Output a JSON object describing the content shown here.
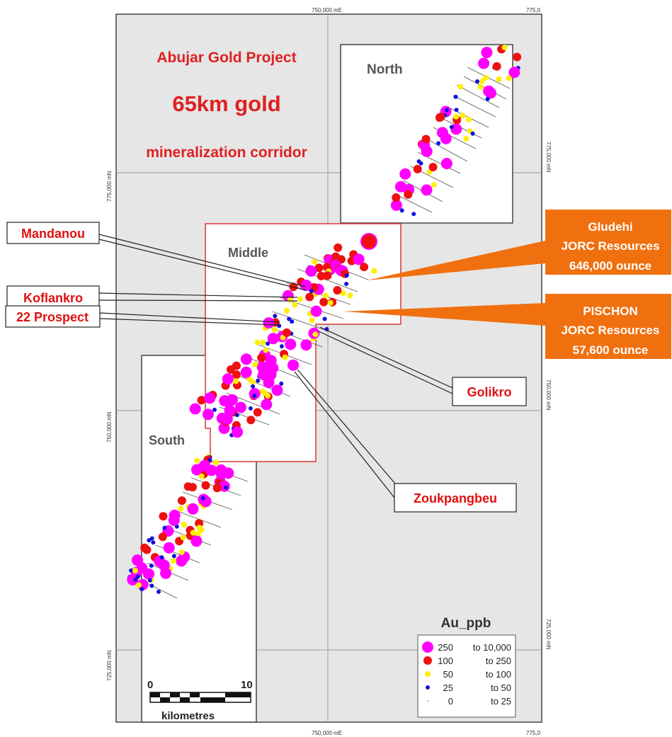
{
  "title": {
    "line1": "Abujar Gold Project",
    "line2": "65km gold",
    "line3": "mineralization corridor"
  },
  "grid_labels": {
    "easting_top": "750,000 mE",
    "easting_bottom": "750,000 mE",
    "corner_top_right": "775,0",
    "corner_bottom_right": "775,0",
    "northing_left_775": "775,000 mN",
    "northing_left_750": "750,000 mN",
    "northing_left_725": "725,000 mN",
    "northing_right_775": "775,000 mN",
    "northing_right_750": "750,000 mN",
    "northing_right_725": "725,000 mN"
  },
  "zones": {
    "north": "North",
    "middle": "Middle",
    "south": "South"
  },
  "prospects": {
    "mandanou": "Mandanou",
    "koflankro": "Koflankro",
    "prospect22": "22 Prospect",
    "golikro": "Golikro",
    "zoukpangbeu": "Zoukpangbeu"
  },
  "resources": {
    "gludehi": {
      "name": "Gludehi",
      "line2": "JORC Resources",
      "line3": "646,000 ounce"
    },
    "pischon": {
      "name": "PISCHON",
      "line2": "JORC Resources",
      "line3": "57,600 ounce"
    }
  },
  "legend": {
    "title": "Au_ppb",
    "items": [
      {
        "from": "250",
        "to": "to 10,000",
        "color": "#ff00ff"
      },
      {
        "from": "100",
        "to": "to 250",
        "color": "#ee1111"
      },
      {
        "from": "50",
        "to": "to 100",
        "color": "#ffee00"
      },
      {
        "from": "25",
        "to": "to 50",
        "color": "#1111dd"
      },
      {
        "from": "0",
        "to": "to 25",
        "color": "#9a9a9a"
      }
    ]
  },
  "scale_bar": {
    "start": "0",
    "end": "10",
    "unit": "kilometres"
  },
  "colors": {
    "background": "#e6e6e6",
    "title_red": "#e02020",
    "callout_orange": "#f07010",
    "prospect_red": "#e01010",
    "frame_red": "#dd3333"
  }
}
